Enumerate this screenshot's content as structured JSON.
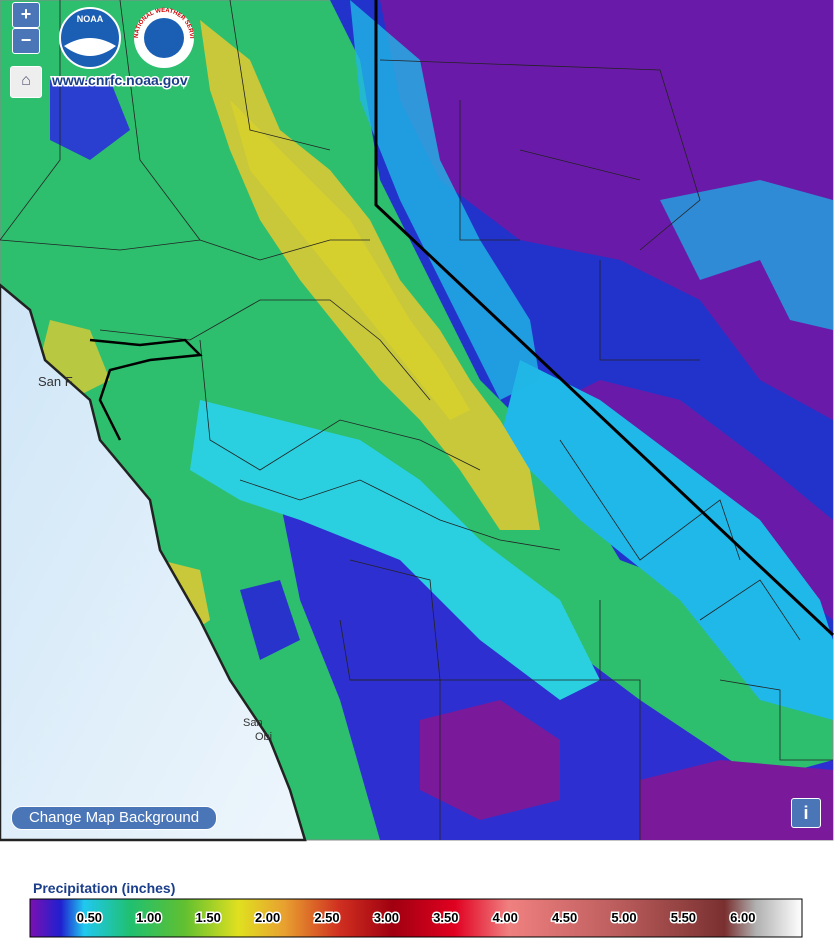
{
  "map": {
    "zoom_in": "+",
    "zoom_out": "−",
    "logo_noaa": "NOAA",
    "logo_nws": "NATIONAL WEATHER SERVICE",
    "url": "www.cnrfc.noaa.gov",
    "place_labels": [
      "San F",
      "San",
      "Obi"
    ],
    "change_background": "Change Map Background",
    "info": "i"
  },
  "legend": {
    "title": "Precipitation (inches)",
    "labels": [
      "0.50",
      "1.00",
      "1.50",
      "2.00",
      "2.50",
      "3.00",
      "3.50",
      "4.00",
      "4.50",
      "5.00",
      "5.50",
      "6.00"
    ]
  }
}
